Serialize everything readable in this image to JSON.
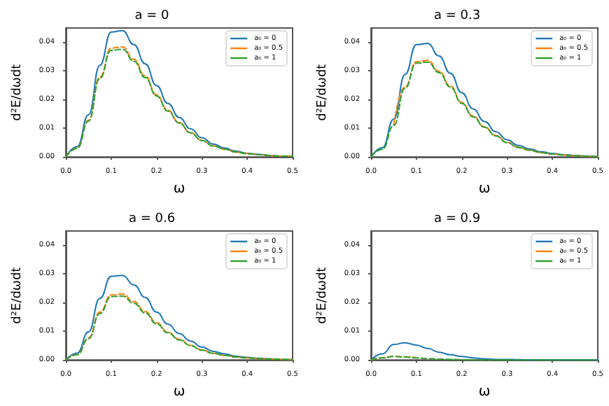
{
  "chart_data": [
    {
      "type": "line",
      "title": "a = 0",
      "xlabel": "ω",
      "ylabel": "d²E/dωdt",
      "xlim": [
        0,
        0.5
      ],
      "ylim": [
        0,
        0.045
      ],
      "xticks": [
        {
          "value": 0,
          "label": "0.0"
        },
        {
          "value": 0.1,
          "label": "0.1"
        },
        {
          "value": 0.2,
          "label": "0.2"
        },
        {
          "value": 0.3,
          "label": "0.3"
        },
        {
          "value": 0.4,
          "label": "0.4"
        },
        {
          "value": 0.5,
          "label": "0.5"
        }
      ],
      "yticks": [
        {
          "value": 0,
          "label": "0.00"
        },
        {
          "value": 0.01,
          "label": "0.01"
        },
        {
          "value": 0.02,
          "label": "0.02"
        },
        {
          "value": 0.03,
          "label": "0.03"
        },
        {
          "value": 0.04,
          "label": "0.04"
        }
      ],
      "legend": "top right",
      "grid": false,
      "marker": "none",
      "x": [
        0,
        0.025,
        0.05,
        0.075,
        0.1,
        0.125,
        0.15,
        0.175,
        0.2,
        0.225,
        0.25,
        0.275,
        0.3,
        0.325,
        0.35,
        0.375,
        0.4,
        0.425,
        0.45,
        0.475,
        0.5
      ],
      "series": [
        {
          "name": "a₀ = 0",
          "color": "#1f77b4",
          "line_style": "solid",
          "values": [
            0,
            0.0036,
            0.0147,
            0.032,
            0.0436,
            0.0441,
            0.0392,
            0.0325,
            0.0249,
            0.0187,
            0.0138,
            0.0098,
            0.0067,
            0.0045,
            0.0031,
            0.002,
            0.0013,
            0.0009,
            0.0005,
            null,
            null
          ]
        },
        {
          "name": "a₀ = 0.5",
          "color": "#ff7f0e",
          "line_style": "dashed",
          "values": [
            0,
            0.0031,
            0.0128,
            0.0279,
            0.038,
            0.0384,
            0.0341,
            0.0283,
            0.0217,
            0.0163,
            0.012,
            0.0085,
            0.0058,
            0.0039,
            0.0027,
            0.0017,
            0.0012,
            0.0008,
            0.0005,
            0.0003,
            0.0002
          ]
        },
        {
          "name": "a₀ = 1",
          "color": "#2ca02c",
          "line_style": "dashed",
          "values": [
            0,
            0.003,
            0.0125,
            0.0274,
            0.0372,
            0.0376,
            0.0334,
            0.0277,
            0.0213,
            0.016,
            0.0118,
            0.0084,
            0.0057,
            0.0038,
            0.0027,
            0.0017,
            0.0011,
            0.0008,
            0.0005,
            0.0003,
            0.0002
          ]
        }
      ]
    },
    {
      "type": "line",
      "title": "a = 0.3",
      "xlabel": "ω",
      "ylabel": "d²E/dωdt",
      "xlim": [
        0,
        0.5
      ],
      "ylim": [
        0,
        0.045
      ],
      "xticks": [
        {
          "value": 0,
          "label": "0.0"
        },
        {
          "value": 0.1,
          "label": "0.1"
        },
        {
          "value": 0.2,
          "label": "0.2"
        },
        {
          "value": 0.3,
          "label": "0.3"
        },
        {
          "value": 0.4,
          "label": "0.4"
        },
        {
          "value": 0.5,
          "label": "0.5"
        }
      ],
      "yticks": [
        {
          "value": 0,
          "label": "0.00"
        },
        {
          "value": 0.01,
          "label": "0.01"
        },
        {
          "value": 0.02,
          "label": "0.02"
        },
        {
          "value": 0.03,
          "label": "0.03"
        },
        {
          "value": 0.04,
          "label": "0.04"
        }
      ],
      "legend": "top right",
      "grid": false,
      "marker": "none",
      "x": [
        0,
        0.025,
        0.05,
        0.075,
        0.1,
        0.125,
        0.15,
        0.175,
        0.2,
        0.225,
        0.25,
        0.275,
        0.3,
        0.325,
        0.35,
        0.375,
        0.4,
        0.425,
        0.45,
        0.475,
        0.5
      ],
      "series": [
        {
          "name": "a₀ = 0",
          "color": "#1f77b4",
          "line_style": "solid",
          "values": [
            0,
            0.0032,
            0.0132,
            0.0288,
            0.0392,
            0.0396,
            0.0352,
            0.0292,
            0.0224,
            0.0168,
            0.0124,
            0.0088,
            0.006,
            0.004,
            0.0028,
            0.0018,
            0.0012,
            0.0008,
            0.0005,
            0.0003,
            0.0002
          ]
        },
        {
          "name": "a₀ = 0.5",
          "color": "#ff7f0e",
          "line_style": "dashed",
          "values": [
            null,
            null,
            0.0112,
            0.0245,
            0.0333,
            0.0337,
            0.0299,
            0.0248,
            0.019,
            0.0143,
            0.0105,
            0.0075,
            0.0051,
            0.0034,
            0.0024,
            0.0015,
            0.001,
            0.0007,
            0.0004,
            0.0002,
            0.0001
          ]
        },
        {
          "name": "a₀ = 1",
          "color": "#2ca02c",
          "line_style": "dashed",
          "values": [
            0,
            0.0027,
            0.011,
            0.024,
            0.0327,
            0.0331,
            0.0294,
            0.0244,
            0.0187,
            0.014,
            0.0104,
            0.0073,
            0.005,
            0.0033,
            0.0023,
            0.0015,
            0.001,
            0.0007,
            0.0004,
            0.0002,
            0.0001
          ]
        }
      ]
    },
    {
      "type": "line",
      "title": "a = 0.6",
      "xlabel": "ω",
      "ylabel": "d²E/dωdt",
      "xlim": [
        0,
        0.5
      ],
      "ylim": [
        0,
        0.045
      ],
      "xticks": [
        {
          "value": 0,
          "label": "0.0"
        },
        {
          "value": 0.1,
          "label": "0.1"
        },
        {
          "value": 0.2,
          "label": "0.2"
        },
        {
          "value": 0.3,
          "label": "0.3"
        },
        {
          "value": 0.4,
          "label": "0.4"
        },
        {
          "value": 0.5,
          "label": "0.5"
        }
      ],
      "yticks": [
        {
          "value": 0,
          "label": "0.00"
        },
        {
          "value": 0.01,
          "label": "0.01"
        },
        {
          "value": 0.02,
          "label": "0.02"
        },
        {
          "value": 0.03,
          "label": "0.03"
        },
        {
          "value": 0.04,
          "label": "0.04"
        }
      ],
      "legend": "top right",
      "grid": false,
      "marker": "none",
      "x": [
        0,
        0.025,
        0.05,
        0.075,
        0.1,
        0.125,
        0.15,
        0.175,
        0.2,
        0.225,
        0.25,
        0.275,
        0.3,
        0.325,
        0.35,
        0.375,
        0.4,
        0.425,
        0.45,
        0.475,
        0.5
      ],
      "series": [
        {
          "name": "a₀ = 0",
          "color": "#1f77b4",
          "line_style": "solid",
          "values": [
            0,
            0.0024,
            0.0098,
            0.0215,
            0.0292,
            0.0295,
            0.0262,
            0.0218,
            0.0167,
            0.0125,
            0.0092,
            0.0066,
            0.0045,
            0.003,
            0.0021,
            0.0013,
            0.0009,
            0.0006,
            0.0004,
            0.0002,
            0.0001
          ]
        },
        {
          "name": "a₀ = 0.5",
          "color": "#ff7f0e",
          "line_style": "dashed",
          "values": [
            0,
            0.0019,
            0.0077,
            0.0167,
            0.0227,
            0.023,
            0.0204,
            0.0169,
            0.013,
            0.0097,
            0.0072,
            0.0051,
            0.0035,
            0.0023,
            0.0016,
            0.001,
            0.0007,
            0.0005,
            0.0003,
            0.0002,
            0.0001
          ]
        },
        {
          "name": "a₀ = 1",
          "color": "#2ca02c",
          "line_style": "dashed",
          "values": [
            0,
            0.0018,
            0.0074,
            0.0162,
            0.0221,
            0.0223,
            0.0198,
            0.0164,
            0.0126,
            0.0095,
            0.007,
            0.005,
            0.0034,
            0.0023,
            0.0016,
            0.001,
            0.0007,
            0.0005,
            0.0003,
            0.0002,
            0.0001
          ]
        }
      ]
    },
    {
      "type": "line",
      "title": "a = 0.9",
      "xlabel": "ω",
      "ylabel": "d²E/dωdt",
      "xlim": [
        0,
        0.5
      ],
      "ylim": [
        0,
        0.045
      ],
      "xticks": [
        {
          "value": 0,
          "label": "0.0"
        },
        {
          "value": 0.1,
          "label": "0.1"
        },
        {
          "value": 0.2,
          "label": "0.2"
        },
        {
          "value": 0.3,
          "label": "0.3"
        },
        {
          "value": 0.4,
          "label": "0.4"
        },
        {
          "value": 0.5,
          "label": "0.5"
        }
      ],
      "yticks": [
        {
          "value": 0,
          "label": "0.00"
        },
        {
          "value": 0.01,
          "label": "0.01"
        },
        {
          "value": 0.02,
          "label": "0.02"
        },
        {
          "value": 0.03,
          "label": "0.03"
        },
        {
          "value": 0.04,
          "label": "0.04"
        }
      ],
      "legend": "top right",
      "grid": false,
      "marker": "none",
      "x": [
        0,
        0.025,
        0.05,
        0.075,
        0.1,
        0.125,
        0.15,
        0.175,
        0.2,
        0.225,
        0.25,
        0.275,
        0.3,
        0.325,
        0.35,
        0.375,
        0.4,
        0.425,
        0.45,
        0.475,
        0.5
      ],
      "series": [
        {
          "name": "a₀ = 0",
          "color": "#1f77b4",
          "line_style": "solid",
          "values": [
            0,
            0.0021,
            0.0054,
            0.006,
            0.0052,
            0.004,
            0.0027,
            0.0018,
            0.0012,
            0.0007,
            0.0004,
            0.0002,
            0.0002,
            0.0001,
            0,
            0,
            0,
            0,
            0,
            0,
            0
          ]
        },
        {
          "name": "a₀ = 0.5",
          "color": "#ff7f0e",
          "line_style": "dashed",
          "values": [
            0,
            0.0008,
            0.0013,
            0.0011,
            0.0008,
            null,
            null,
            null,
            null,
            null,
            null,
            null,
            null,
            null,
            null,
            null,
            null,
            null,
            null,
            null,
            null
          ]
        },
        {
          "name": "a₀ = 1",
          "color": "#2ca02c",
          "line_style": "dashed",
          "values": [
            0,
            0.0007,
            0.0012,
            0.001,
            0.0007,
            0.0005,
            0.0003,
            0.0002,
            0.0001,
            0,
            0,
            0,
            0,
            0,
            0,
            0,
            0,
            0,
            0,
            0,
            0
          ]
        }
      ]
    }
  ]
}
